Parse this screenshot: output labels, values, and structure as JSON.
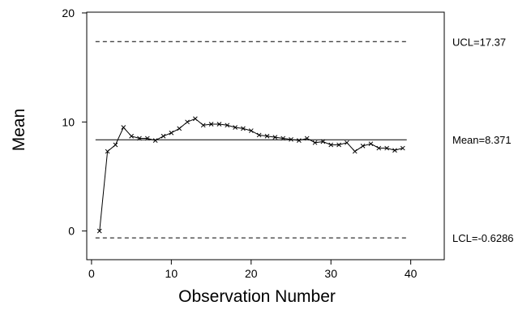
{
  "chart_data": {
    "type": "line",
    "title": "",
    "xlabel": "Observation Number",
    "ylabel": "Mean",
    "xlim": [
      -0.6,
      44.2
    ],
    "ylim": [
      -2.63,
      20.07
    ],
    "x_ticks": [
      0,
      10,
      20,
      30,
      40
    ],
    "y_ticks": [
      0,
      10,
      20
    ],
    "grid": false,
    "legend": "none",
    "marker": "x",
    "reference_lines": [
      {
        "name": "UCL",
        "label": "UCL=17.37",
        "value": 17.37,
        "style": "dashed"
      },
      {
        "name": "Mean",
        "label": "Mean=8.371",
        "value": 8.371,
        "style": "solid"
      },
      {
        "name": "LCL",
        "label": "LCL=-0.6286",
        "value": -0.6286,
        "style": "dashed"
      }
    ],
    "series": [
      {
        "x": [
          1,
          2,
          3,
          4,
          5,
          6,
          7,
          8,
          9,
          10,
          11,
          12,
          13,
          14,
          15,
          16,
          17,
          18,
          19,
          20,
          21,
          22,
          23,
          24,
          25,
          26,
          27,
          28,
          29,
          30,
          31,
          32,
          33,
          34,
          35,
          36,
          37,
          38,
          39
        ],
        "values": [
          0.0,
          7.3,
          7.9,
          9.5,
          8.7,
          8.5,
          8.5,
          8.3,
          8.7,
          9.0,
          9.4,
          10.0,
          10.3,
          9.7,
          9.8,
          9.8,
          9.7,
          9.5,
          9.4,
          9.2,
          8.8,
          8.7,
          8.6,
          8.5,
          8.4,
          8.3,
          8.5,
          8.1,
          8.2,
          7.9,
          7.9,
          8.1,
          7.3,
          7.8,
          8.0,
          7.6,
          7.6,
          7.4,
          7.6
        ]
      }
    ],
    "colors": {
      "line": "#000000",
      "axis": "#000000",
      "background": "#ffffff"
    }
  }
}
